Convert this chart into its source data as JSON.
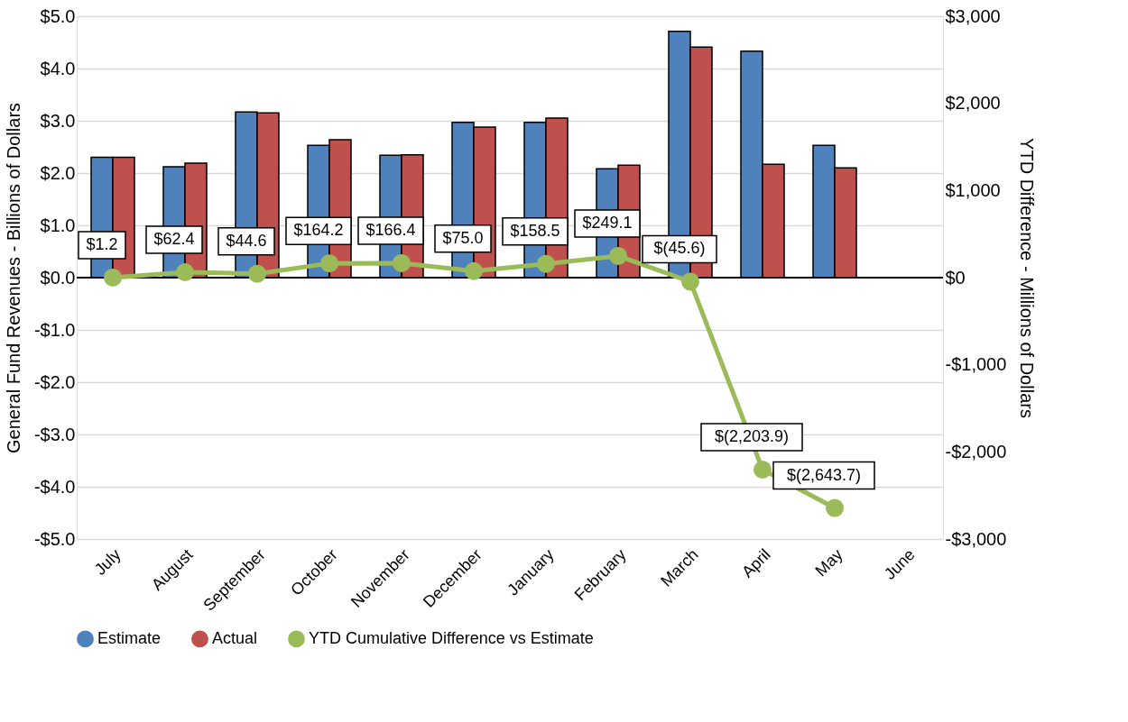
{
  "chart_data": {
    "type": "bar",
    "categories": [
      "July",
      "August",
      "September",
      "October",
      "November",
      "December",
      "January",
      "February",
      "March",
      "April",
      "May",
      "June"
    ],
    "ylabel": "General Fund Revenues - Billions of Dollars",
    "y2label": "YTD Difference - Millions of Dollars",
    "ylim": [
      -5,
      5
    ],
    "yticks": [
      {
        "value": -5,
        "label": "-$5.0"
      },
      {
        "value": -4,
        "label": "-$4.0"
      },
      {
        "value": -3,
        "label": "-$3.0"
      },
      {
        "value": -2,
        "label": "-$2.0"
      },
      {
        "value": -1,
        "label": "-$1.0"
      },
      {
        "value": 0,
        "label": "$0.0"
      },
      {
        "value": 1,
        "label": "$1.0"
      },
      {
        "value": 2,
        "label": "$2.0"
      },
      {
        "value": 3,
        "label": "$3.0"
      },
      {
        "value": 4,
        "label": "$4.0"
      },
      {
        "value": 5,
        "label": "$5.0"
      }
    ],
    "y2lim": [
      -3000,
      3000
    ],
    "y2ticks": [
      {
        "value": -3000,
        "label": "-$3,000"
      },
      {
        "value": -2000,
        "label": "-$2,000"
      },
      {
        "value": -1000,
        "label": "-$1,000"
      },
      {
        "value": 0,
        "label": "$0"
      },
      {
        "value": 1000,
        "label": "$1,000"
      },
      {
        "value": 2000,
        "label": "$2,000"
      },
      {
        "value": 3000,
        "label": "$3,000"
      }
    ],
    "grid": "y",
    "legend": "bottom",
    "series": [
      {
        "name": "Estimate",
        "color": "#4f81bd",
        "values": [
          2.3,
          2.12,
          3.17,
          2.53,
          2.34,
          2.97,
          2.97,
          2.08,
          4.71,
          4.33,
          2.53,
          null
        ]
      },
      {
        "name": "Actual",
        "color": "#c0504d",
        "values": [
          2.3,
          2.19,
          3.15,
          2.64,
          2.35,
          2.88,
          3.05,
          2.15,
          4.41,
          2.17,
          2.1,
          null
        ]
      },
      {
        "name": "YTD Cumulative Difference vs Estimate",
        "color": "#9bbb59",
        "type": "line",
        "axis": "y2",
        "marker": "circle",
        "values": [
          1.2,
          62.4,
          44.6,
          164.2,
          166.4,
          75.0,
          158.5,
          249.1,
          -45.6,
          -2203.9,
          -2643.7,
          null
        ],
        "value_labels": [
          "$1.2",
          "$62.4",
          "$44.6",
          "$164.2",
          "$166.4",
          "$75.0",
          "$158.5",
          "$249.1",
          "$(45.6)",
          "$(2,203.9)",
          "$(2,643.7)",
          null
        ]
      }
    ]
  }
}
